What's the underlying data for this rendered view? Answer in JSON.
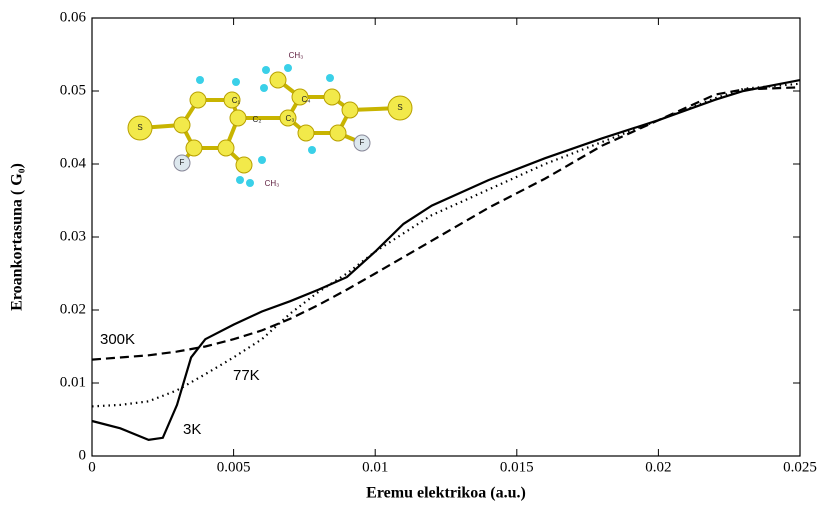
{
  "chart_data": {
    "type": "line",
    "xlabel": "Eremu elektrikoa (a.u.)",
    "ylabel": "Eroankortasuna ( G₀)",
    "xlim": [
      0,
      0.025
    ],
    "xticks": [
      0,
      0.005,
      0.01,
      0.015,
      0.02,
      0.025
    ],
    "ylim": [
      0,
      0.06
    ],
    "yticks": [
      0,
      0.01,
      0.02,
      0.03,
      0.04,
      0.05,
      0.06
    ],
    "series": [
      {
        "name": "3K",
        "color": "#000000",
        "dash": "solid",
        "x": [
          0,
          0.001,
          0.002,
          0.0025,
          0.003,
          0.0035,
          0.004,
          0.005,
          0.006,
          0.007,
          0.008,
          0.009,
          0.01,
          0.011,
          0.012,
          0.014,
          0.016,
          0.018,
          0.02,
          0.022,
          0.023,
          0.025
        ],
        "values": [
          0.0048,
          0.0038,
          0.0022,
          0.0025,
          0.007,
          0.0135,
          0.016,
          0.018,
          0.0198,
          0.0212,
          0.0228,
          0.0245,
          0.028,
          0.0318,
          0.0343,
          0.0378,
          0.0408,
          0.0435,
          0.046,
          0.0488,
          0.05,
          0.0515
        ]
      },
      {
        "name": "77K",
        "color": "#000000",
        "dash": "dotted",
        "x": [
          0,
          0.001,
          0.002,
          0.003,
          0.004,
          0.005,
          0.006,
          0.007,
          0.008,
          0.009,
          0.01,
          0.012,
          0.014,
          0.016,
          0.018,
          0.02,
          0.022,
          0.023,
          0.025
        ],
        "values": [
          0.0068,
          0.007,
          0.0075,
          0.009,
          0.0112,
          0.0135,
          0.016,
          0.0195,
          0.0225,
          0.025,
          0.028,
          0.033,
          0.0365,
          0.04,
          0.043,
          0.046,
          0.049,
          0.0503,
          0.051
        ]
      },
      {
        "name": "300K",
        "color": "#000000",
        "dash": "dashed",
        "x": [
          0,
          0.002,
          0.003,
          0.004,
          0.005,
          0.006,
          0.007,
          0.008,
          0.009,
          0.01,
          0.012,
          0.014,
          0.016,
          0.018,
          0.02,
          0.022,
          0.023,
          0.025
        ],
        "values": [
          0.0132,
          0.0138,
          0.0143,
          0.015,
          0.016,
          0.0172,
          0.0188,
          0.0207,
          0.0228,
          0.025,
          0.0295,
          0.034,
          0.038,
          0.0425,
          0.046,
          0.0495,
          0.0502,
          0.0505
        ]
      }
    ],
    "inset_labels": [
      "S",
      "S",
      "F",
      "F",
      "CH₃",
      "CH₃",
      "C₁",
      "C₂",
      "C₃",
      "C₄"
    ]
  }
}
